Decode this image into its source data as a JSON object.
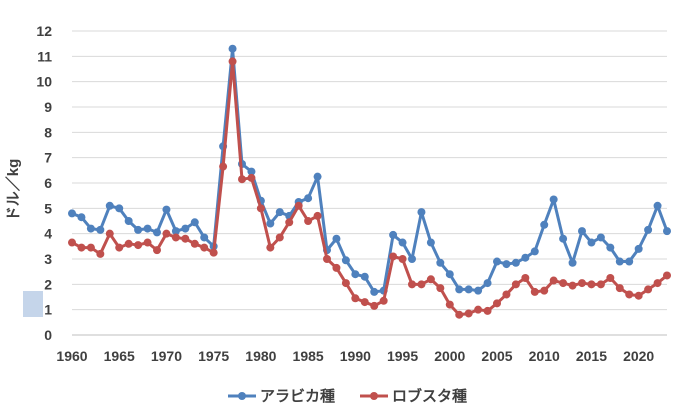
{
  "chart_data": {
    "type": "line",
    "title": "",
    "xlabel": "",
    "ylabel": "ドル／kg",
    "x": [
      1960,
      1961,
      1962,
      1963,
      1964,
      1965,
      1966,
      1967,
      1968,
      1969,
      1970,
      1971,
      1972,
      1973,
      1974,
      1975,
      1976,
      1977,
      1978,
      1979,
      1980,
      1981,
      1982,
      1983,
      1984,
      1985,
      1986,
      1987,
      1988,
      1989,
      1990,
      1991,
      1992,
      1993,
      1994,
      1995,
      1996,
      1997,
      1998,
      1999,
      2000,
      2001,
      2002,
      2003,
      2004,
      2005,
      2006,
      2007,
      2008,
      2009,
      2010,
      2011,
      2012,
      2013,
      2014,
      2015,
      2016,
      2017,
      2018,
      2019,
      2020,
      2021,
      2022,
      2023
    ],
    "xlim": [
      1960,
      2023
    ],
    "xticks": [
      1960,
      1965,
      1970,
      1975,
      1980,
      1985,
      1990,
      1995,
      2000,
      2005,
      2010,
      2015,
      2020
    ],
    "ylim": [
      0,
      12
    ],
    "yticks": [
      0,
      1,
      2,
      3,
      4,
      5,
      6,
      7,
      8,
      9,
      10,
      11,
      12
    ],
    "grid": true,
    "legend_position": "bottom",
    "series": [
      {
        "name": "アラビカ種",
        "color": "#4f81bd",
        "values": [
          4.8,
          4.65,
          4.2,
          4.15,
          5.1,
          5.0,
          4.5,
          4.15,
          4.2,
          4.05,
          4.95,
          4.1,
          4.2,
          4.45,
          3.85,
          3.5,
          7.45,
          11.3,
          6.75,
          6.45,
          5.3,
          4.4,
          4.85,
          4.7,
          5.25,
          5.4,
          6.25,
          3.35,
          3.8,
          2.95,
          2.4,
          2.3,
          1.7,
          1.75,
          3.95,
          3.65,
          3.0,
          4.85,
          3.65,
          2.85,
          2.4,
          1.8,
          1.8,
          1.75,
          2.05,
          2.9,
          2.8,
          2.85,
          3.05,
          3.3,
          4.35,
          5.35,
          3.8,
          2.85,
          4.1,
          3.65,
          3.85,
          3.45,
          2.9,
          2.9,
          3.4,
          4.15,
          5.1,
          4.1
        ]
      },
      {
        "name": "ロブスタ種",
        "color": "#c0504d",
        "values": [
          3.65,
          3.45,
          3.45,
          3.2,
          4.0,
          3.45,
          3.6,
          3.55,
          3.65,
          3.35,
          4.0,
          3.85,
          3.8,
          3.6,
          3.45,
          3.25,
          6.65,
          10.8,
          6.15,
          6.2,
          5.0,
          3.45,
          3.85,
          4.45,
          5.1,
          4.5,
          4.7,
          3.0,
          2.65,
          2.05,
          1.45,
          1.3,
          1.15,
          1.35,
          3.1,
          3.0,
          2.0,
          2.0,
          2.2,
          1.85,
          1.2,
          0.8,
          0.85,
          1.0,
          0.95,
          1.25,
          1.6,
          2.0,
          2.25,
          1.7,
          1.75,
          2.15,
          2.05,
          1.95,
          2.05,
          2.0,
          2.0,
          2.25,
          1.85,
          1.6,
          1.55,
          1.8,
          2.05,
          2.35
        ]
      }
    ]
  }
}
